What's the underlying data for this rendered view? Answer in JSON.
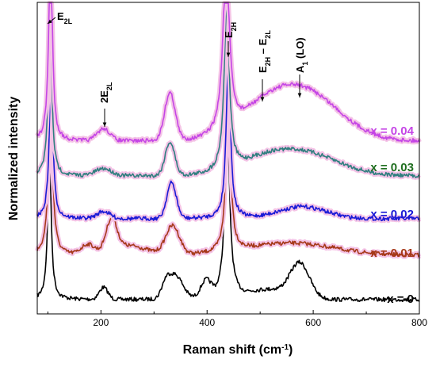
{
  "chart_data": {
    "type": "line",
    "xlabel": "Raman shift (cm",
    "xlabel_sup": "-1",
    "xlabel_end": ")",
    "ylabel": "Normalized intensity",
    "xlim": [
      80,
      800
    ],
    "xticks": [
      200,
      400,
      600,
      800
    ],
    "grid": false,
    "series": [
      {
        "name": "x = 0",
        "color": "#000000",
        "halo": "#ffffff"
      },
      {
        "name": "x = 0.01",
        "color": "#a6391a",
        "halo": "#f4c3e6"
      },
      {
        "name": "x = 0.02",
        "color": "#1a1ad6",
        "halo": "#f4c3e6"
      },
      {
        "name": "x = 0.03",
        "color": "#2f7f7f",
        "halo": "#f4c3e6",
        "label_color": "#1f6e1f"
      },
      {
        "name": "x = 0.04",
        "color": "#c545e6",
        "halo": "#f4c3e6"
      }
    ],
    "annotations": [
      {
        "main": "E",
        "sub": "2L",
        "x": 107
      },
      {
        "main": "2E",
        "sub": "2L",
        "x": 205
      },
      {
        "main": "E",
        "sub": "2H",
        "main2": " – E",
        "sub2": "2L",
        "x": 332
      },
      {
        "main": "E",
        "sub": "2H",
        "x": 437
      },
      {
        "main": "A",
        "sub": "1",
        "main2": " (LO)",
        "x": 575
      }
    ]
  }
}
